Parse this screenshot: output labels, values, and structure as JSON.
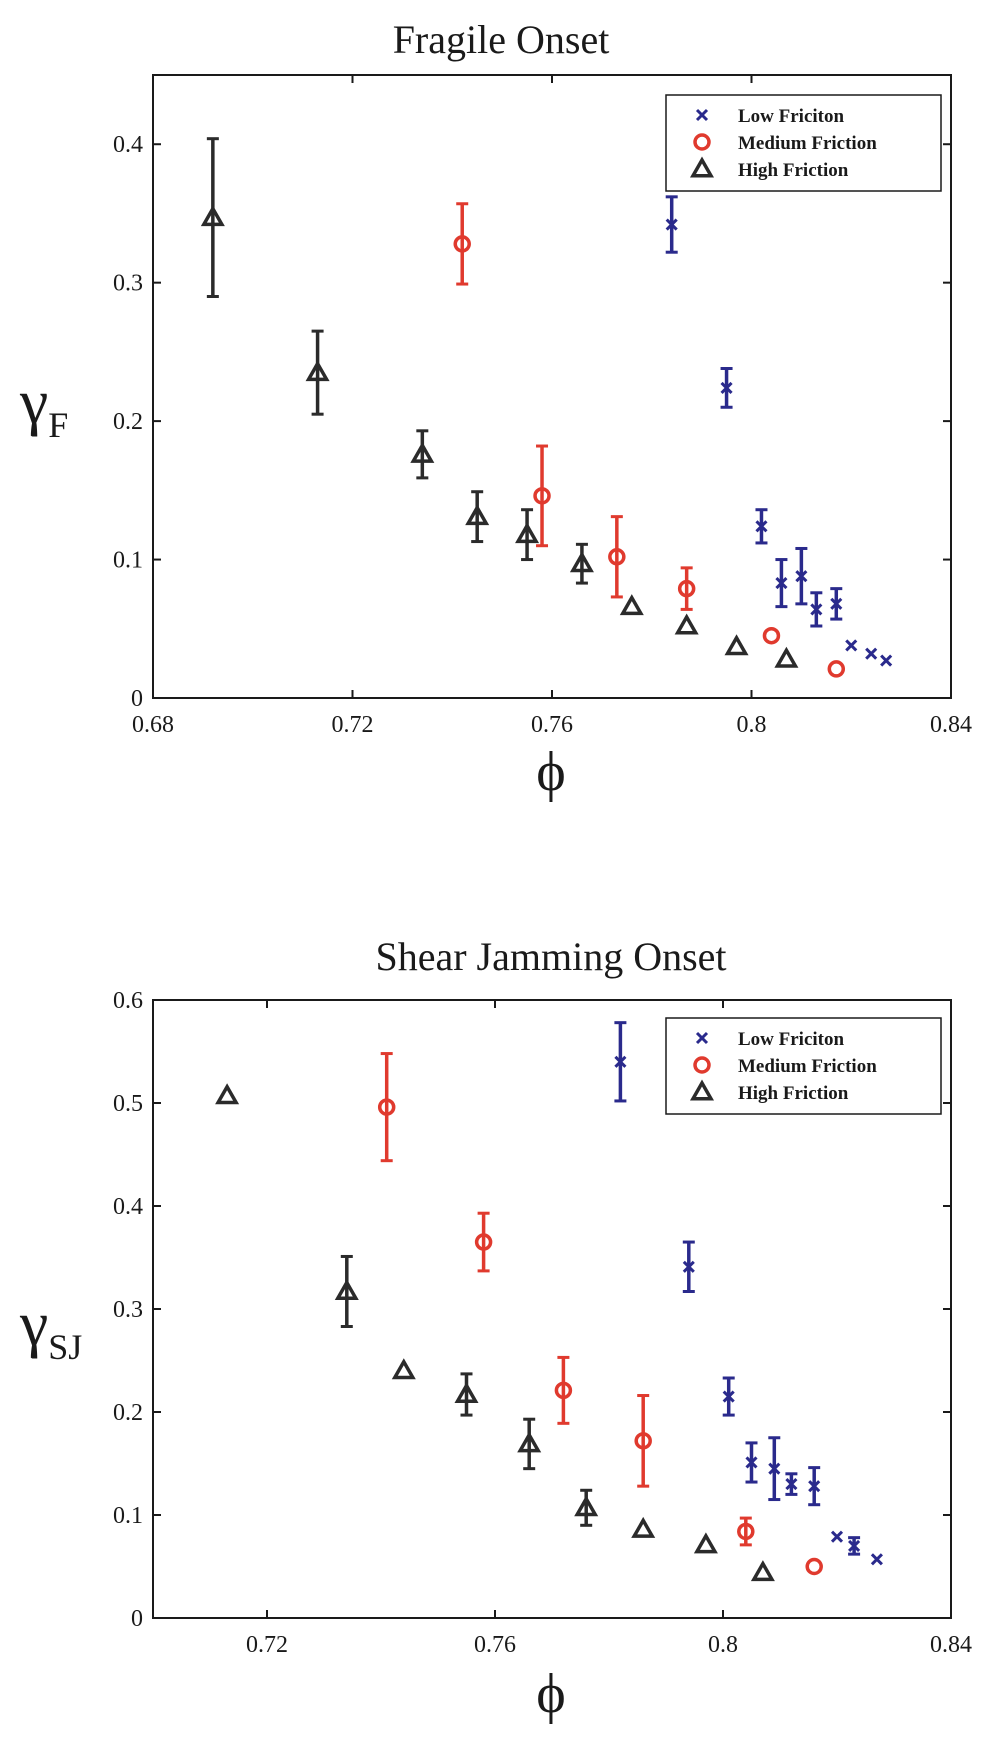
{
  "chart_data": [
    {
      "type": "scatter",
      "title": "Fragile Onset",
      "xlabel": "ϕ",
      "ylabel": "γ",
      "ylabel_sub": "F",
      "xlim": [
        0.68,
        0.84
      ],
      "ylim": [
        0,
        0.45
      ],
      "xticks": [
        "0.68",
        "0.72",
        "0.76",
        "0.8",
        "0.84"
      ],
      "yticks": [
        "0",
        "0.1",
        "0.2",
        "0.3",
        "0.4"
      ],
      "legend_position": "top-right",
      "series": [
        {
          "name": "Low Friciton",
          "marker": "x",
          "color": "#2a2a8c",
          "points": [
            {
              "x": 0.784,
              "y": 0.342,
              "err": 0.02
            },
            {
              "x": 0.795,
              "y": 0.224,
              "err": 0.014
            },
            {
              "x": 0.802,
              "y": 0.124,
              "err": 0.012
            },
            {
              "x": 0.806,
              "y": 0.083,
              "err": 0.017
            },
            {
              "x": 0.81,
              "y": 0.088,
              "err": 0.02
            },
            {
              "x": 0.813,
              "y": 0.064,
              "err": 0.012
            },
            {
              "x": 0.817,
              "y": 0.068,
              "err": 0.011
            },
            {
              "x": 0.82,
              "y": 0.038,
              "err": 0.005
            },
            {
              "x": 0.824,
              "y": 0.032,
              "err": 0.004
            },
            {
              "x": 0.827,
              "y": 0.027,
              "err": 0.004
            }
          ]
        },
        {
          "name": "Medium Friction",
          "marker": "o",
          "color": "#e03a2e",
          "points": [
            {
              "x": 0.742,
              "y": 0.328,
              "err": 0.029
            },
            {
              "x": 0.758,
              "y": 0.146,
              "err": 0.036
            },
            {
              "x": 0.773,
              "y": 0.102,
              "err": 0.029
            },
            {
              "x": 0.787,
              "y": 0.079,
              "err": 0.015
            },
            {
              "x": 0.804,
              "y": 0.045,
              "err": 0.003
            },
            {
              "x": 0.817,
              "y": 0.021,
              "err": 0.002
            }
          ]
        },
        {
          "name": "High Friction",
          "marker": "^",
          "color": "#2b2b2b",
          "points": [
            {
              "x": 0.692,
              "y": 0.347,
              "err": 0.057
            },
            {
              "x": 0.713,
              "y": 0.235,
              "err": 0.03
            },
            {
              "x": 0.734,
              "y": 0.176,
              "err": 0.017
            },
            {
              "x": 0.745,
              "y": 0.131,
              "err": 0.018
            },
            {
              "x": 0.755,
              "y": 0.118,
              "err": 0.018
            },
            {
              "x": 0.766,
              "y": 0.097,
              "err": 0.014
            },
            {
              "x": 0.776,
              "y": 0.066,
              "err": 0.004
            },
            {
              "x": 0.787,
              "y": 0.052,
              "err": 0.004
            },
            {
              "x": 0.797,
              "y": 0.037,
              "err": 0.003
            },
            {
              "x": 0.807,
              "y": 0.028,
              "err": 0.003
            }
          ]
        }
      ]
    },
    {
      "type": "scatter",
      "title": "Shear Jamming Onset",
      "xlabel": "ϕ",
      "ylabel": "γ",
      "ylabel_sub": "SJ",
      "xlim": [
        0.7,
        0.84
      ],
      "ylim": [
        0,
        0.6
      ],
      "xticks": [
        "0.72",
        "0.76",
        "0.8",
        "0.84"
      ],
      "yticks": [
        "0",
        "0.1",
        "0.2",
        "0.3",
        "0.4",
        "0.5",
        "0.6"
      ],
      "legend_position": "top-right",
      "series": [
        {
          "name": "Low Friciton",
          "marker": "x",
          "color": "#2a2a8c",
          "points": [
            {
              "x": 0.782,
              "y": 0.54,
              "err": 0.038
            },
            {
              "x": 0.794,
              "y": 0.341,
              "err": 0.024
            },
            {
              "x": 0.801,
              "y": 0.215,
              "err": 0.018
            },
            {
              "x": 0.805,
              "y": 0.151,
              "err": 0.019
            },
            {
              "x": 0.809,
              "y": 0.145,
              "err": 0.03
            },
            {
              "x": 0.812,
              "y": 0.13,
              "err": 0.01
            },
            {
              "x": 0.816,
              "y": 0.128,
              "err": 0.018
            },
            {
              "x": 0.82,
              "y": 0.079,
              "err": 0.005
            },
            {
              "x": 0.823,
              "y": 0.07,
              "err": 0.008
            },
            {
              "x": 0.827,
              "y": 0.057,
              "err": 0.005
            }
          ]
        },
        {
          "name": "Medium Friction",
          "marker": "o",
          "color": "#e03a2e",
          "points": [
            {
              "x": 0.741,
              "y": 0.496,
              "err": 0.052
            },
            {
              "x": 0.758,
              "y": 0.365,
              "err": 0.028
            },
            {
              "x": 0.772,
              "y": 0.221,
              "err": 0.032
            },
            {
              "x": 0.786,
              "y": 0.172,
              "err": 0.044
            },
            {
              "x": 0.804,
              "y": 0.084,
              "err": 0.013
            },
            {
              "x": 0.816,
              "y": 0.05,
              "err": 0.004
            }
          ]
        },
        {
          "name": "High Friction",
          "marker": "^",
          "color": "#2b2b2b",
          "points": [
            {
              "x": 0.713,
              "y": 0.507,
              "err": 0.004
            },
            {
              "x": 0.734,
              "y": 0.317,
              "err": 0.034
            },
            {
              "x": 0.744,
              "y": 0.24,
              "err": 0.004
            },
            {
              "x": 0.755,
              "y": 0.217,
              "err": 0.02
            },
            {
              "x": 0.766,
              "y": 0.169,
              "err": 0.024
            },
            {
              "x": 0.776,
              "y": 0.107,
              "err": 0.017
            },
            {
              "x": 0.786,
              "y": 0.086,
              "err": 0.004
            },
            {
              "x": 0.797,
              "y": 0.071,
              "err": 0.004
            },
            {
              "x": 0.807,
              "y": 0.044,
              "err": 0.004
            }
          ]
        }
      ]
    }
  ]
}
